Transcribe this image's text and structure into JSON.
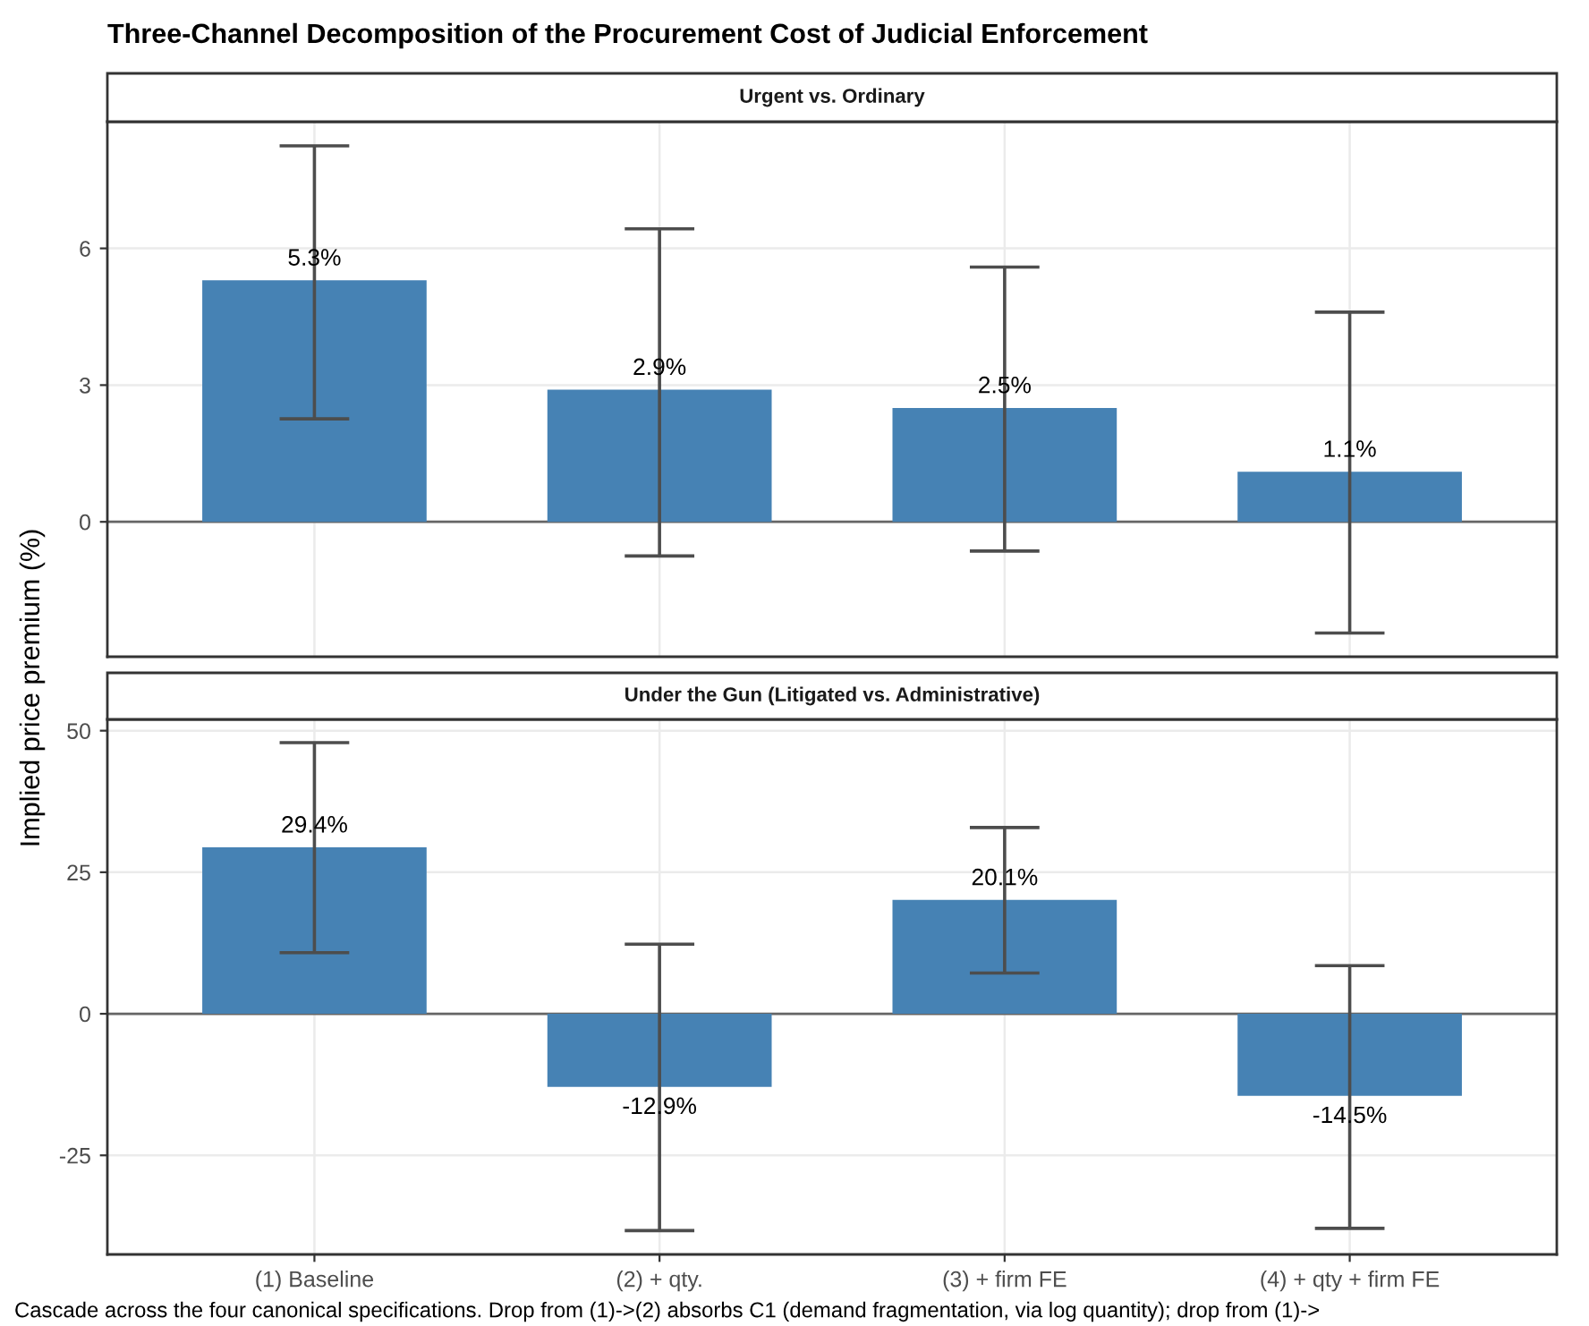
{
  "chart_data": [
    {
      "type": "bar",
      "title": "Three-Channel Decomposition of the Procurement Cost of Judicial Enforcement",
      "subtitle": "Urgent vs. Ordinary",
      "ylabel": "Implied price premium (%)",
      "categories": [
        null,
        null,
        null,
        null
      ],
      "values": [
        5.3,
        2.9,
        2.5,
        1.1
      ],
      "color": "#4682b4",
      "errors": [
        [
          2.26,
          8.25
        ],
        [
          -0.75,
          6.43
        ],
        [
          -0.64,
          5.59
        ],
        [
          -2.44,
          4.6
        ]
      ],
      "value_labels": [
        "5.3%",
        "2.9%",
        "2.5%",
        "1.1%"
      ],
      "ylim": [
        -2.96,
        8.78
      ],
      "yticks": [
        0,
        3,
        6
      ],
      "grid": true,
      "tick_labels": "y",
      "ref_lines": [
        {
          "axis": "y",
          "value": 0,
          "color": "#666666"
        }
      ]
    },
    {
      "type": "bar",
      "subtitle": "Under the Gun (Litigated vs. Administrative)",
      "categories": [
        "(1) Baseline",
        "(2) + qty.",
        "(3) + firm FE",
        "(4) + qty + firm FE"
      ],
      "values": [
        29.4,
        -12.9,
        20.1,
        -14.5
      ],
      "color": "#4682b4",
      "errors": [
        [
          10.8,
          47.9
        ],
        [
          -38.3,
          12.3
        ],
        [
          7.2,
          32.9
        ],
        [
          -37.9,
          8.5
        ]
      ],
      "value_labels": [
        "29.4%",
        "-12.9%",
        "20.1%",
        "-14.5%"
      ],
      "ylim": [
        -42.5,
        52
      ],
      "yticks": [
        -25,
        0,
        25,
        50
      ],
      "grid": true,
      "ref_lines": [
        {
          "axis": "y",
          "value": 0,
          "color": "#666666"
        }
      ],
      "annotations": [
        "Cascade across the four canonical specifications. Drop from (1)->(2) absorbs C1 (demand fragmentation, via log quantity); drop from (1)->"
      ]
    }
  ]
}
